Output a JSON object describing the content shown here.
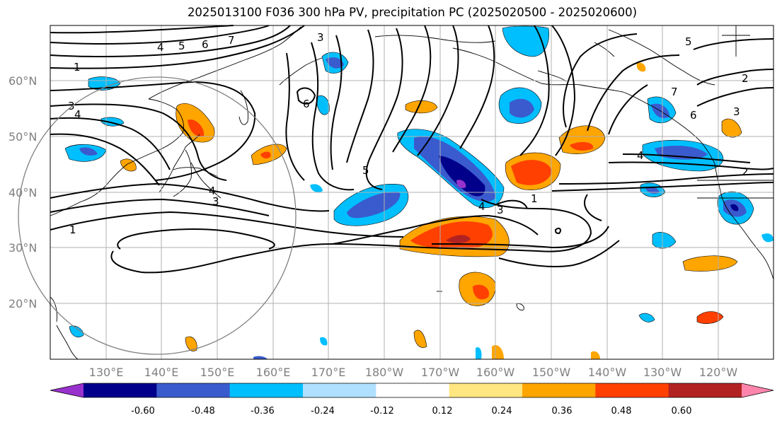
{
  "title": "2025013100 F036 300 hPa PV, precipitation PC (2025020500 - 2025020600)",
  "lat_labels": [
    "60°N",
    "50°N",
    "40°N",
    "30°N",
    "20°N"
  ],
  "lon_labels": [
    "130°E",
    "140°E",
    "150°E",
    "160°E",
    "170°E",
    "180°W",
    "170°W",
    "160°W",
    "150°W",
    "140°W",
    "130°W",
    "120°W"
  ],
  "colorbar": {
    "colors": [
      "#9932cc",
      "#00008b",
      "#3a5bcd",
      "#00bfff",
      "#b0e0ff",
      "#ffffff",
      "#ffe680",
      "#ffa500",
      "#ff4000",
      "#b22222",
      "#ff85ad"
    ],
    "tick_labels": [
      "-0.60",
      "-0.48",
      "-0.36",
      "-0.24",
      "-0.12",
      "0.12",
      "0.24",
      "0.36",
      "0.48",
      "0.60"
    ]
  },
  "pv_contour_labels": [
    "1",
    "2",
    "3",
    "4",
    "5",
    "6",
    "7"
  ],
  "colors": {
    "grid": "#b0b0b0",
    "axis_text": "#808080",
    "coast": "#000000",
    "circle": "#808080"
  }
}
